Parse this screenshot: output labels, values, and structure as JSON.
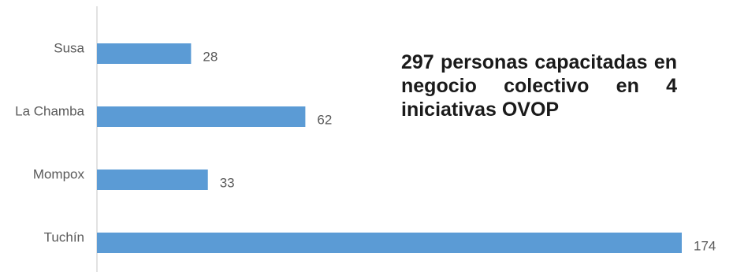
{
  "headline": "297 personas capacitadas en negocio colectivo en 4 iniciativas OVOP",
  "chart_data": {
    "type": "bar",
    "orientation": "horizontal",
    "categories": [
      "Susa",
      "La Chamba",
      "Mompox",
      "Tuchín"
    ],
    "values": [
      28,
      62,
      33,
      174
    ],
    "xlim": [
      0,
      174
    ],
    "grid": false,
    "legend": "none",
    "bar_color": "#5B9BD5",
    "data_labels": true
  }
}
